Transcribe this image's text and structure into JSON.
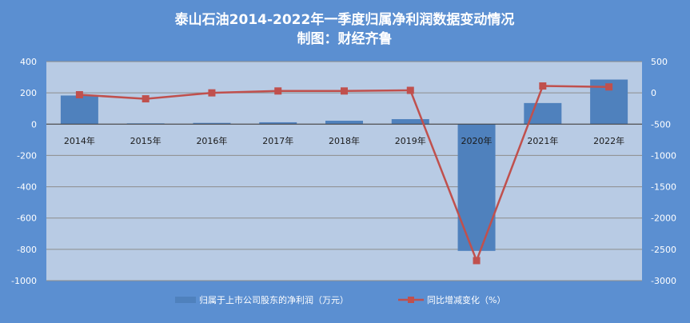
{
  "chart_data": {
    "type": "bar",
    "title": "泰山石油2014-2022年一季度归属净利润数据变动情况",
    "subtitle": "制图：财经齐鲁",
    "categories": [
      "2014年",
      "2015年",
      "2016年",
      "2017年",
      "2018年",
      "2019年",
      "2020年",
      "2021年",
      "2022年"
    ],
    "series": [
      {
        "name": "归属于上市公司股东的净利润（万元）",
        "type": "bar",
        "axis": "left",
        "color": "#4f81bd",
        "values": [
          183,
          5,
          8,
          12,
          22,
          32,
          -810,
          135,
          285
        ]
      },
      {
        "name": "同比增减变化（%）",
        "type": "line",
        "axis": "right",
        "color": "#c0504d",
        "values": [
          -30,
          -95,
          0,
          30,
          30,
          40,
          -2680,
          110,
          95
        ]
      }
    ],
    "y_left": {
      "ylim": [
        -1000,
        400
      ],
      "ticks": [
        400,
        200,
        0,
        -200,
        -400,
        -600,
        -800,
        -1000
      ]
    },
    "y_right": {
      "ylim": [
        -3000,
        500
      ],
      "ticks": [
        500,
        0,
        -500,
        -1000,
        -1500,
        -2000,
        -2500,
        -3000
      ]
    },
    "grid": true,
    "legend": "bottom"
  }
}
